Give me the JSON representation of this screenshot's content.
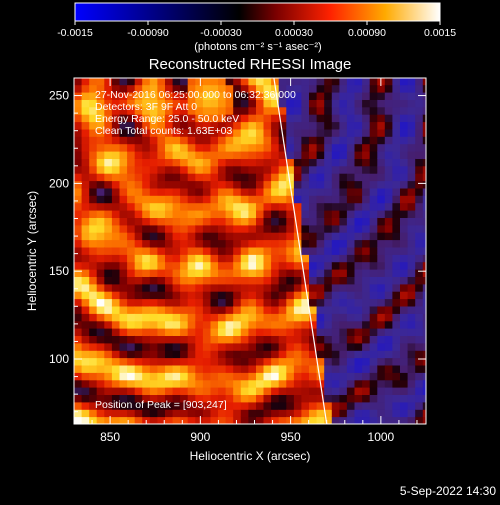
{
  "chart_data": {
    "type": "heatmap",
    "title": "Reconstructed RHESSI Image",
    "xlabel": "Heliocentric X (arcsec)",
    "ylabel": "Heliocentric Y (arcsec)",
    "xlim": [
      830,
      1025
    ],
    "ylim": [
      63,
      260
    ],
    "x_ticks": [
      850,
      900,
      950,
      1000
    ],
    "y_ticks": [
      100,
      150,
      200,
      250
    ],
    "annotations": [
      "27-Nov-2016 06:25:00.000 to 06:32:36.000",
      "Detectors: 3F 9F  Att 0",
      "Energy Range: 25.0 - 50.0 keV",
      "Clean     Total counts: 1.63E+03",
      "Position of Peak = [903,247]"
    ],
    "peak": [
      903,
      247
    ],
    "colorbar": {
      "range": [
        -0.0015,
        0.0015
      ],
      "tick_labels": [
        "-0.0015",
        "-0.00090",
        "-0.00030",
        "0.00030",
        "0.00090",
        "0.0015"
      ],
      "tick_values": [
        -0.0015,
        -0.0009,
        -0.0003,
        0.0003,
        0.0009,
        0.0015
      ],
      "units_label": "(photons cm⁻² s⁻¹ asec⁻²)",
      "colormap": [
        "#0000ff",
        "#000000",
        "#8b0000",
        "#ff3300",
        "#ffaa00",
        "#ffff66",
        "#ffffff"
      ]
    },
    "limb_line": [
      [
        940,
        265
      ],
      [
        970,
        63
      ]
    ],
    "grid": false,
    "legend": "none"
  },
  "footer": {
    "timestamp": "5-Sep-2022 14:30"
  }
}
